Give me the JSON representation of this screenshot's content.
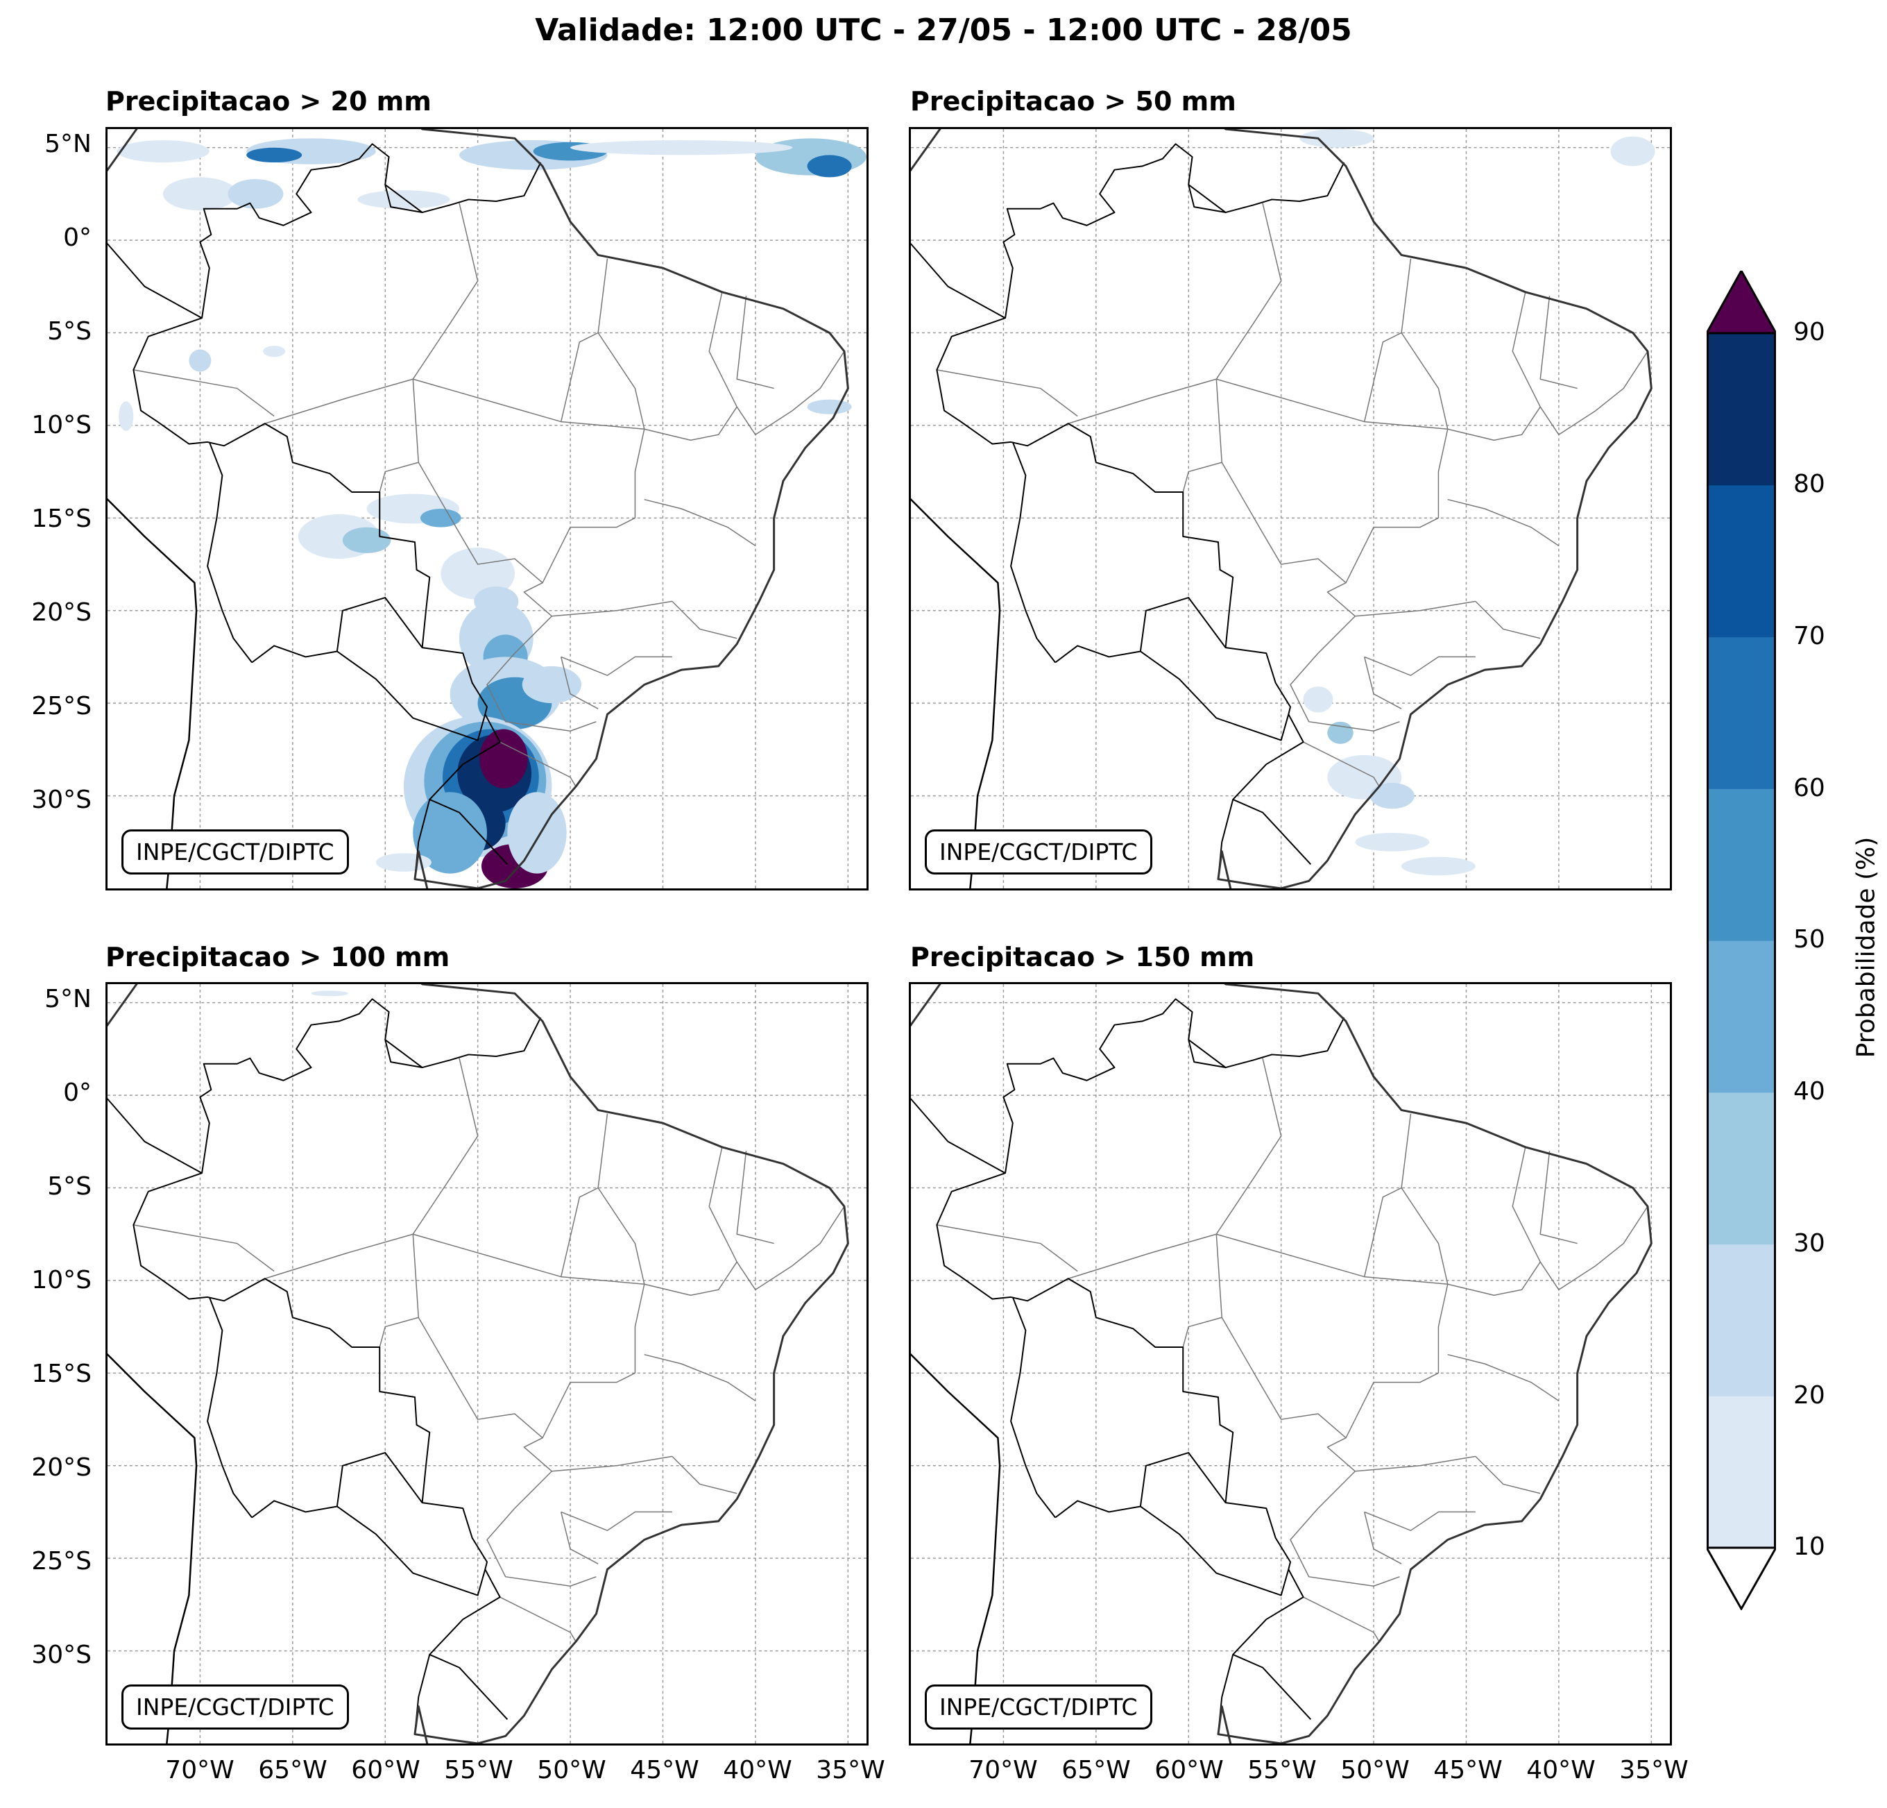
{
  "title": "Validade: 12:00 UTC - 27/05 - 12:00 UTC - 28/05",
  "panels": [
    {
      "title": "Precipitacao > 20 mm",
      "credit": "INPE/CGCT/DIPTC"
    },
    {
      "title": "Precipitacao > 50 mm",
      "credit": "INPE/CGCT/DIPTC"
    },
    {
      "title": "Precipitacao > 100 mm",
      "credit": "INPE/CGCT/DIPTC"
    },
    {
      "title": "Precipitacao > 150 mm",
      "credit": "INPE/CGCT/DIPTC"
    }
  ],
  "lat_labels": [
    "5°N",
    "0°",
    "5°S",
    "10°S",
    "15°S",
    "20°S",
    "25°S",
    "30°S"
  ],
  "lon_labels": [
    "70°W",
    "65°W",
    "60°W",
    "55°W",
    "50°W",
    "45°W",
    "40°W",
    "35°W"
  ],
  "colorbar": {
    "label": "Probabilidade (%)",
    "ticks": [
      "10",
      "20",
      "30",
      "40",
      "50",
      "60",
      "70",
      "80",
      "90"
    ],
    "colors": [
      "#dce9f5",
      "#c4daee",
      "#9ecae1",
      "#6badd6",
      "#4292c6",
      "#2171b5",
      "#0b559f",
      "#08306b"
    ],
    "over_color": "#54004e",
    "under_color": "#ffffff"
  },
  "map_extent": {
    "lon_min": -75,
    "lon_max": -34,
    "lat_min": -35,
    "lat_max": 6
  }
}
